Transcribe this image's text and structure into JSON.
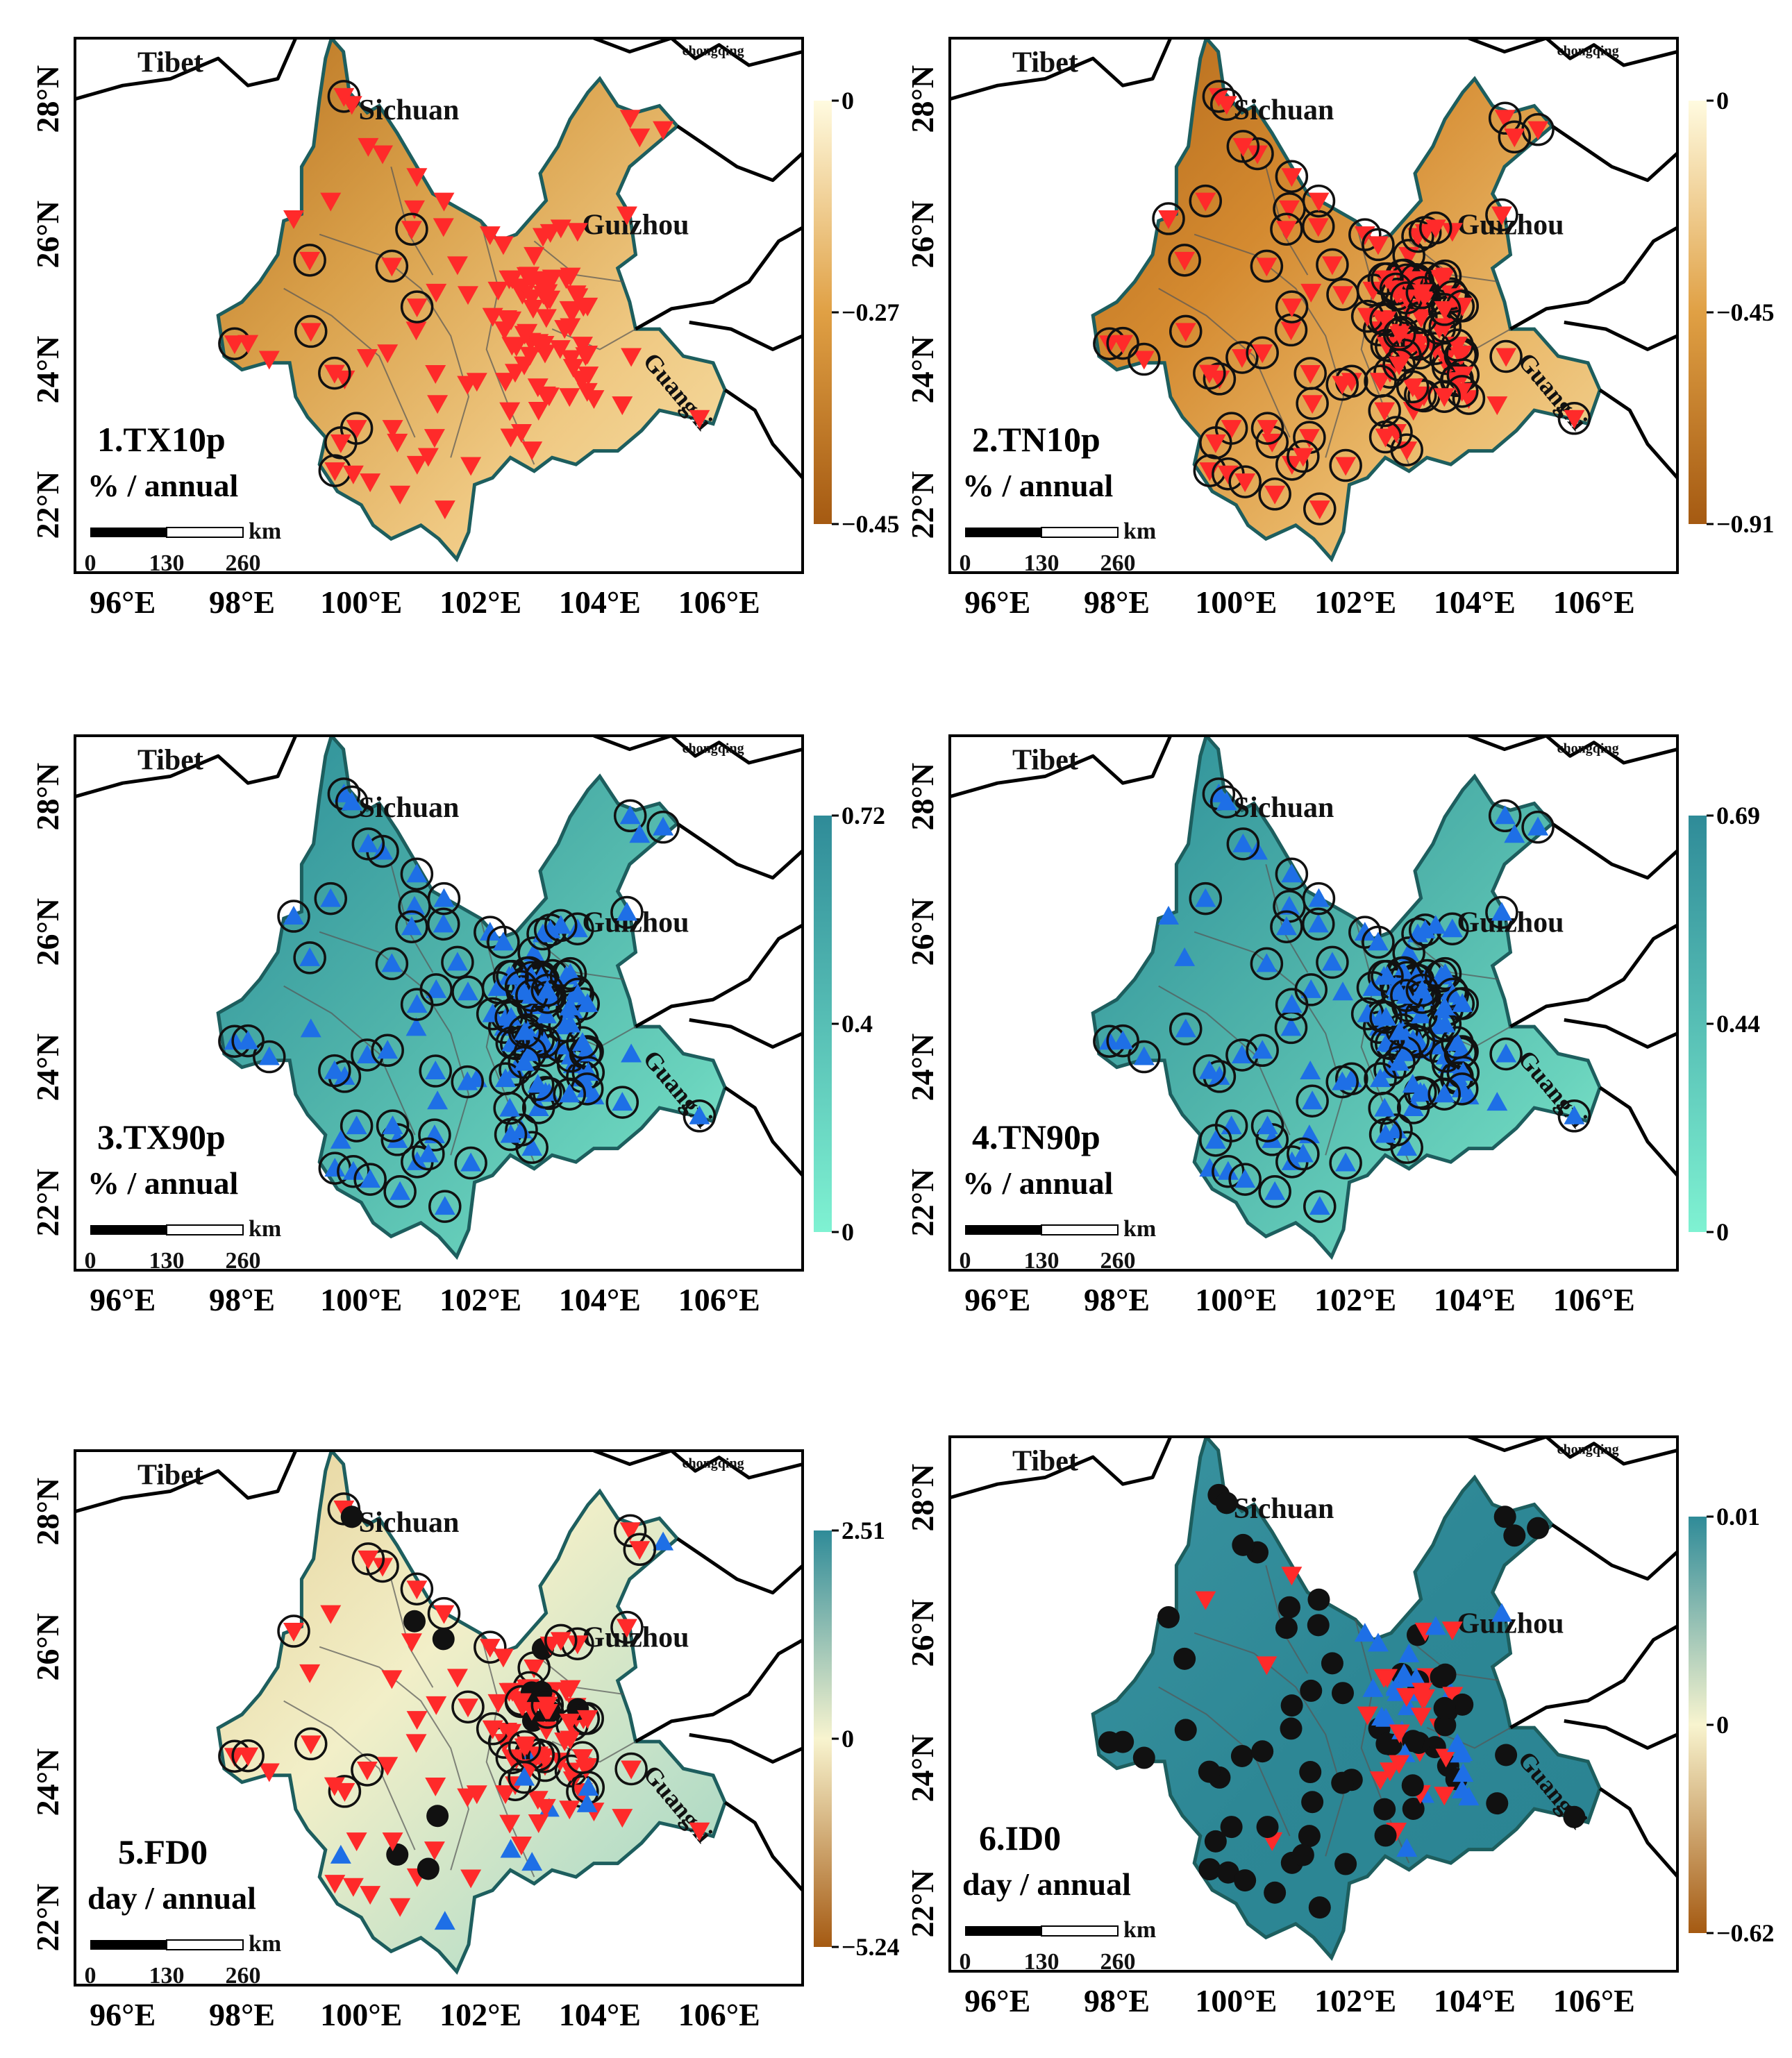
{
  "colors": {
    "cold_dark": "#a55a12",
    "cold_mid": "#e0a044",
    "cold_light": "#fffbe0",
    "warm_dark": "#2f8b98",
    "warm_light": "#7ff2d2",
    "red_marker": "#ff2a2a",
    "blue_marker": "#1e6fe6",
    "black_marker": "#111111"
  },
  "shared": {
    "regions": [
      "Tibet",
      "Sichuan",
      "Guizhou",
      "Guangxi",
      "chongqing"
    ],
    "x_ticks": [
      "96°E",
      "98°E",
      "100°E",
      "102°E",
      "104°E",
      "106°E"
    ],
    "y_ticks": [
      "22°N",
      "24°N",
      "26°N",
      "28°N"
    ],
    "scalebar": {
      "unit": "km",
      "labels": [
        "0",
        "130",
        "260"
      ]
    }
  },
  "chart_data": [
    {
      "id": "p1",
      "type": "map",
      "title": "1.TX10p",
      "unit": "% / annual",
      "colorbar": {
        "labels": [
          "0",
          "−0.27",
          "−0.45"
        ],
        "values": [
          0,
          -0.27,
          -0.45
        ],
        "palette": "brown"
      },
      "markers": {
        "style": "red-down",
        "circled_fraction": 0.45
      }
    },
    {
      "id": "p2",
      "type": "map",
      "title": "2.TN10p",
      "unit": "% / annual",
      "colorbar": {
        "labels": [
          "0",
          "−0.45",
          "−0.91"
        ],
        "values": [
          0,
          -0.45,
          -0.91
        ],
        "palette": "brown"
      },
      "markers": {
        "style": "red-down",
        "circled_fraction": 0.95
      }
    },
    {
      "id": "p3",
      "type": "map",
      "title": "3.TX90p",
      "unit": "% / annual",
      "colorbar": {
        "labels": [
          "0.72",
          "0.4",
          "0"
        ],
        "values": [
          0.72,
          0.4,
          0
        ],
        "palette": "teal"
      },
      "markers": {
        "style": "blue-up",
        "circled_fraction": 0.9
      }
    },
    {
      "id": "p4",
      "type": "map",
      "title": "4.TN90p",
      "unit": "% / annual",
      "colorbar": {
        "labels": [
          "0.69",
          "0.44",
          "0"
        ],
        "values": [
          0.69,
          0.44,
          0
        ],
        "palette": "teal"
      },
      "markers": {
        "style": "blue-up",
        "circled_fraction": 0.85
      }
    },
    {
      "id": "p5",
      "type": "map",
      "title": "5.FD0",
      "unit": "day / annual",
      "colorbar": {
        "labels": [
          "2.51",
          "0",
          "−5.24"
        ],
        "values": [
          2.51,
          0,
          -5.24
        ],
        "palette": "diverging"
      },
      "markers": {
        "style": "mixed-fd",
        "circled_fraction": 0.45
      }
    },
    {
      "id": "p6",
      "type": "map",
      "title": "6.ID0",
      "unit": "day / annual",
      "colorbar": {
        "labels": [
          "0.01",
          "0",
          "−0.62"
        ],
        "values": [
          0.01,
          0,
          -0.62
        ],
        "palette": "diverging"
      },
      "markers": {
        "style": "mixed-id",
        "circled_fraction": 0
      }
    }
  ]
}
